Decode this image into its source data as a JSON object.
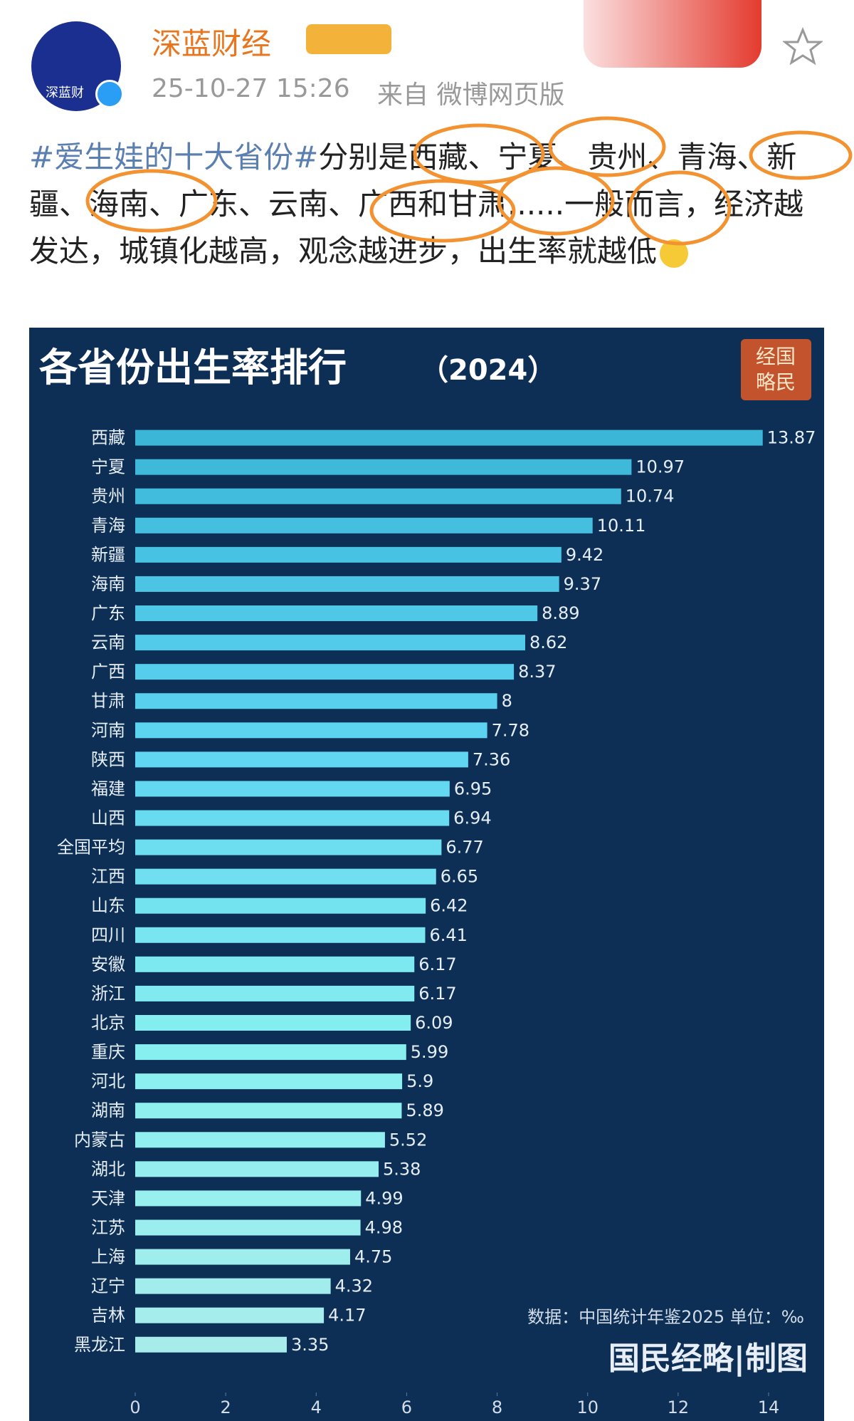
{
  "post": {
    "avatar_text": "深蓝财",
    "author": "深蓝财经",
    "time": "25-10-27 15:26",
    "source": "来自 微博网页版",
    "hashtag": "#爱生娃的十大省份#",
    "text": "分别是西藏、宁夏、贵州、青海、新疆、海南、广东、云南、广西和甘肃......一般而言，经济越发达，城镇化越高，观念越进步，出生率就越低"
  },
  "chart_data": {
    "type": "bar",
    "orientation": "horizontal",
    "title": "各省份出生率排行",
    "subtitle": "（2024）",
    "logo": [
      "经国",
      "略民"
    ],
    "categories": [
      "西藏",
      "宁夏",
      "贵州",
      "青海",
      "新疆",
      "海南",
      "广东",
      "云南",
      "广西",
      "甘肃",
      "河南",
      "陕西",
      "福建",
      "山西",
      "全国平均",
      "江西",
      "山东",
      "四川",
      "安徽",
      "浙江",
      "北京",
      "重庆",
      "河北",
      "湖南",
      "内蒙古",
      "湖北",
      "天津",
      "江苏",
      "上海",
      "辽宁",
      "吉林",
      "黑龙江"
    ],
    "values": [
      13.87,
      10.97,
      10.74,
      10.11,
      9.42,
      9.37,
      8.89,
      8.62,
      8.37,
      8,
      7.78,
      7.36,
      6.95,
      6.94,
      6.77,
      6.65,
      6.42,
      6.41,
      6.17,
      6.17,
      6.09,
      5.99,
      5.9,
      5.89,
      5.52,
      5.38,
      4.99,
      4.98,
      4.75,
      4.32,
      4.17,
      3.35
    ],
    "color": "#3cb6d6",
    "xlim": [
      0,
      14
    ],
    "xticks": [
      0,
      2,
      4,
      6,
      8,
      10,
      12,
      14
    ],
    "note": "数据：中国统计年鉴2025 单位：‰",
    "credit": "国民经略|制图"
  }
}
